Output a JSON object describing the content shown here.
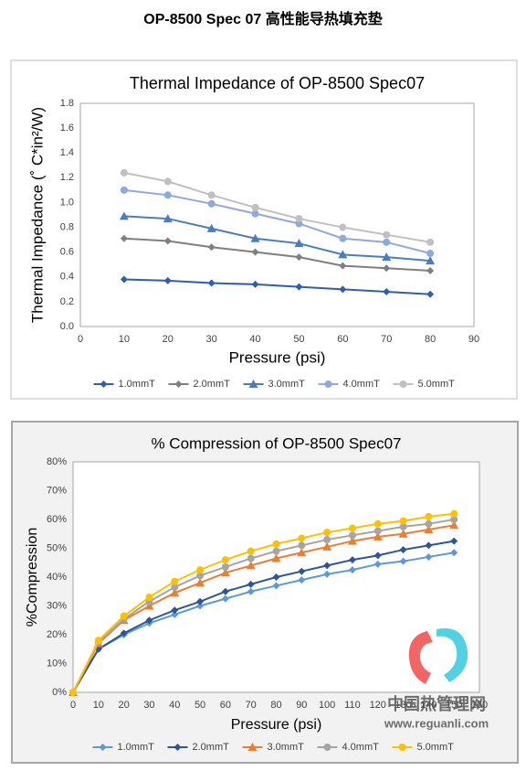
{
  "document_title": "OP-8500 Spec 07  高性能导热填充垫",
  "watermark": {
    "name": "中国热管理网",
    "url": "www.reguanli.com"
  },
  "chart_data": [
    {
      "type": "line",
      "title": "Thermal Impedance of OP-8500 Spec07",
      "x_label": "Pressure (psi)",
      "y_label": "Thermal Impedance (˚ C*in²/W)",
      "x": [
        10,
        20,
        30,
        40,
        50,
        60,
        70,
        80
      ],
      "xlim": [
        0,
        90
      ],
      "xticks": [
        0,
        10,
        20,
        30,
        40,
        50,
        60,
        70,
        80,
        90
      ],
      "ylim": [
        0,
        1.8
      ],
      "yticks": [
        {
          "value": 0,
          "label": "0.0"
        },
        0.2,
        0.4,
        0.6,
        0.8,
        {
          "value": 1,
          "label": "1.0"
        },
        1.2,
        1.4,
        1.6,
        1.8
      ],
      "grid": false,
      "legend": "bottom",
      "series": [
        {
          "name": "1.0mmT",
          "color": "#2f5fac",
          "marker": "diamond",
          "values": [
            0.38,
            0.37,
            0.35,
            0.34,
            0.32,
            0.3,
            0.28,
            0.26
          ]
        },
        {
          "name": "2.0mmT",
          "color": "#7f7f7f",
          "marker": "diamond",
          "values": [
            0.71,
            0.69,
            0.64,
            0.6,
            0.56,
            0.49,
            0.47,
            0.45
          ]
        },
        {
          "name": "3.0mmT",
          "color": "#4a7ebb",
          "marker": "triangle",
          "values": [
            0.89,
            0.87,
            0.79,
            0.71,
            0.67,
            0.58,
            0.56,
            0.53
          ]
        },
        {
          "name": "4.0mmT",
          "color": "#8ea9db",
          "marker": "circle",
          "values": [
            1.1,
            1.06,
            0.99,
            0.91,
            0.83,
            0.71,
            0.68,
            0.59
          ]
        },
        {
          "name": "5.0mmT",
          "color": "#c0c0c0",
          "marker": "circle",
          "values": [
            1.24,
            1.17,
            1.06,
            0.96,
            0.87,
            0.8,
            0.74,
            0.68
          ]
        }
      ]
    },
    {
      "type": "line",
      "title": "% Compression of OP-8500 Spec07",
      "x_label": "Pressure (psi)",
      "y_label": "%Compression",
      "x": [
        0,
        10,
        20,
        30,
        40,
        50,
        60,
        70,
        80,
        90,
        100,
        110,
        120,
        130,
        140,
        150
      ],
      "xlim": [
        0,
        160
      ],
      "xticks": [
        0,
        10,
        20,
        30,
        40,
        50,
        60,
        70,
        80,
        90,
        100,
        110,
        120,
        130,
        140,
        150,
        160
      ],
      "ylim": [
        0,
        80
      ],
      "yticks": [
        {
          "value": 0,
          "label": "0%"
        },
        {
          "value": 10,
          "label": "10%"
        },
        {
          "value": 20,
          "label": "20%"
        },
        {
          "value": 30,
          "label": "30%"
        },
        {
          "value": 40,
          "label": "40%"
        },
        {
          "value": 50,
          "label": "50%"
        },
        {
          "value": 60,
          "label": "60%"
        },
        {
          "value": 70,
          "label": "70%"
        },
        {
          "value": 80,
          "label": "80%"
        }
      ],
      "grid": false,
      "legend": "bottom",
      "series": [
        {
          "name": "1.0mmT",
          "color": "#5b9bd5",
          "marker": "diamond",
          "values": [
            0,
            15,
            20,
            24,
            27,
            30,
            32.5,
            35,
            37,
            39,
            41,
            42.5,
            44.5,
            45.5,
            47,
            48.5
          ]
        },
        {
          "name": "2.0mmT",
          "color": "#2f5597",
          "marker": "diamond",
          "values": [
            0,
            15,
            20.5,
            25,
            28.5,
            31.5,
            35,
            37.5,
            40,
            42,
            44,
            46,
            47.5,
            49.5,
            51,
            52.5
          ]
        },
        {
          "name": "3.0mmT",
          "color": "#ed7d31",
          "marker": "triangle",
          "values": [
            0,
            17,
            25,
            30,
            34.5,
            38,
            41.5,
            44,
            46.5,
            48.5,
            50.5,
            52.5,
            54,
            55,
            56.5,
            58
          ]
        },
        {
          "name": "4.0mmT",
          "color": "#a5a5a5",
          "marker": "circle",
          "values": [
            0,
            17.5,
            25.5,
            31.5,
            36.5,
            40.5,
            43.5,
            46.5,
            49,
            51,
            53,
            54.5,
            56,
            57.5,
            58.5,
            60
          ]
        },
        {
          "name": "5.0mmT",
          "color": "#ffc000",
          "marker": "circle",
          "values": [
            0,
            18,
            26.5,
            33,
            38.5,
            42.5,
            46,
            49,
            51.5,
            53.5,
            55.5,
            57,
            58.5,
            59.5,
            61,
            62
          ]
        }
      ]
    }
  ]
}
